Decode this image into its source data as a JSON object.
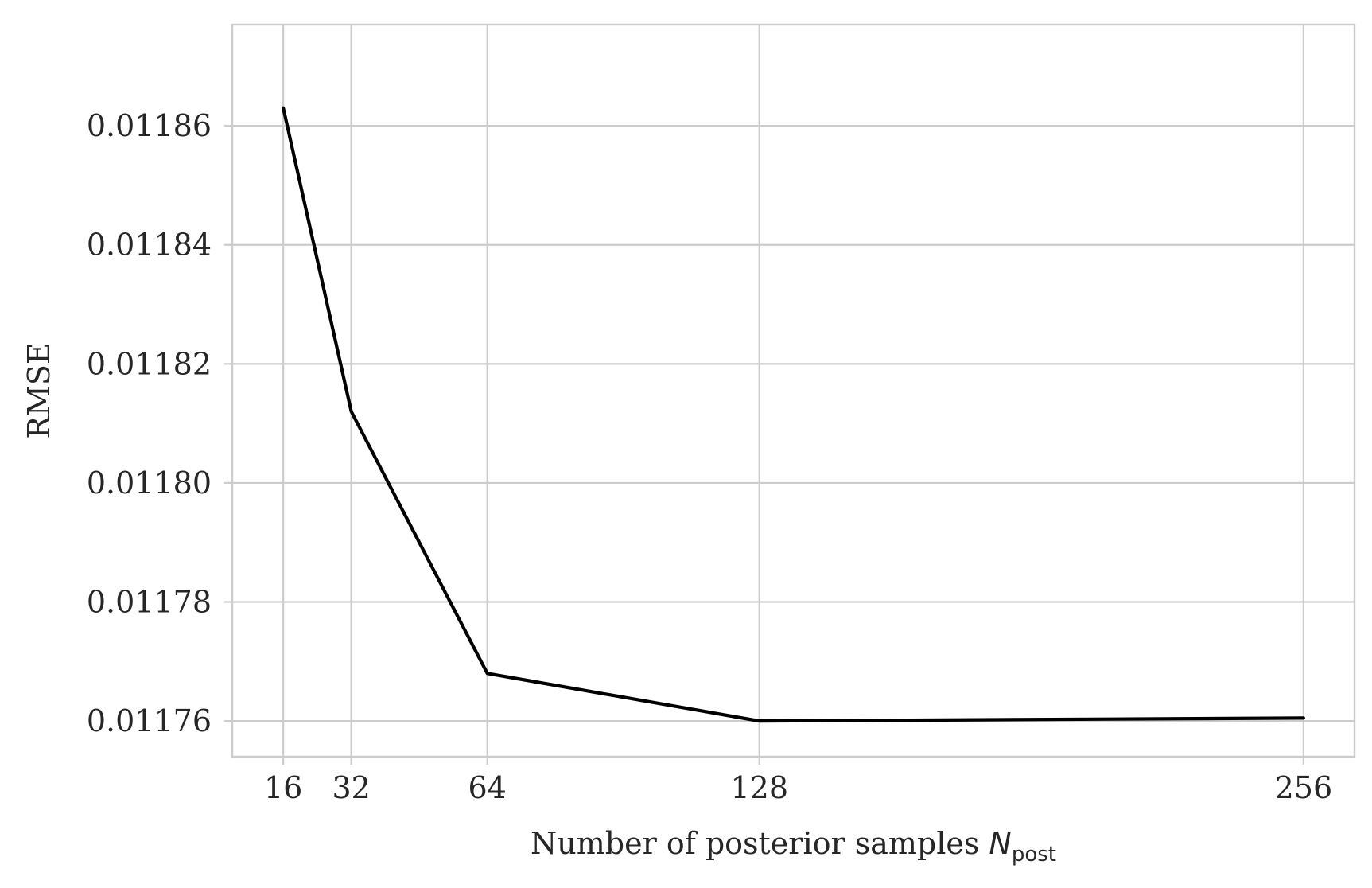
{
  "chart_data": {
    "type": "line",
    "title": "",
    "xlabel": "Number of posterior samples",
    "xlabel_symbol": "N",
    "xlabel_subscript": "post",
    "ylabel": "RMSE",
    "x": [
      16,
      32,
      64,
      128,
      256
    ],
    "x_tick_labels": [
      "16",
      "32",
      "64",
      "128",
      "256"
    ],
    "y_ticks": [
      0.01176,
      0.01178,
      0.0118,
      0.01182,
      0.01184,
      0.01186
    ],
    "y_tick_labels": [
      "0.01176",
      "0.01178",
      "0.01180",
      "0.01182",
      "0.01184",
      "0.01186"
    ],
    "xlim": [
      4,
      268
    ],
    "ylim": [
      0.011754,
      0.011877
    ],
    "series": [
      {
        "values": [
          0.011863,
          0.011812,
          0.011768,
          0.01176,
          0.0117605
        ],
        "color": "#000000"
      }
    ],
    "grid": true,
    "legend": "none"
  }
}
